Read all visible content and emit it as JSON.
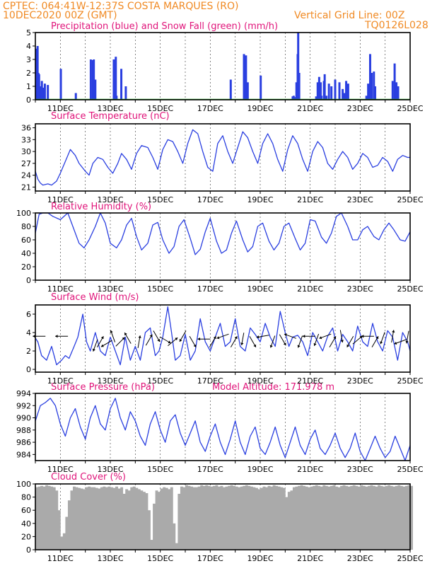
{
  "header": {
    "line1": "CPTEC:   064:41W-12:37S   COSTA MARQUES (RO)",
    "line2": "10DEC2020 00Z (GMT)",
    "grid_note": "Vertical Grid Line: 00Z",
    "code": "TQ0126L028"
  },
  "colors": {
    "header": "#f08a24",
    "title": "#e0147a",
    "series": "#2a3fe0",
    "snow": "#22aa22",
    "cloud": "#aaaaaa"
  },
  "x_tick_labels": [
    "11DEC",
    "13DEC",
    "15DEC",
    "17DEC",
    "19DEC",
    "21DEC",
    "23DEC",
    "25DEC"
  ],
  "chart_data": [
    {
      "id": "precip",
      "type": "bar",
      "title": "Precipitation (blue) and Snow Fall (green) (mm/h)",
      "ylim": [
        0,
        5
      ],
      "yticks": [
        0,
        1,
        2,
        3,
        4,
        5
      ],
      "x_unit": "day offset from 10DEC 00Z",
      "xlim": [
        0,
        15
      ],
      "series": [
        {
          "name": "Precipitation",
          "color": "#2a3fe0",
          "x": [
            0.05,
            0.09,
            0.12,
            0.15,
            0.2,
            0.26,
            0.3,
            0.33,
            0.38,
            0.5,
            1.02,
            1.62,
            2.22,
            2.3,
            2.34,
            2.4,
            3.14,
            3.22,
            3.25,
            3.44,
            3.62,
            7.82,
            8.35,
            8.43,
            8.5,
            9.02,
            10.3,
            10.34,
            10.4,
            10.45,
            10.5,
            10.52,
            10.56,
            11.24,
            11.3,
            11.36,
            11.42,
            11.45,
            11.55,
            11.58,
            11.65,
            11.75,
            11.85,
            12.0,
            12.17,
            12.3,
            12.37,
            12.44,
            12.52,
            13.25,
            13.32,
            13.4,
            13.46,
            13.55,
            13.6,
            14.3,
            14.38,
            14.45,
            14.52
          ],
          "values": [
            3.8,
            4.0,
            2.0,
            1.9,
            1.0,
            1.4,
            0.9,
            0.6,
            1.2,
            1.1,
            2.3,
            0.5,
            3.0,
            2.95,
            3.0,
            1.5,
            3.0,
            3.2,
            0.3,
            2.3,
            1.0,
            1.5,
            3.4,
            3.3,
            1.3,
            1.8,
            0.25,
            0.3,
            0.2,
            1.3,
            3.4,
            5.0,
            2.0,
            0.25,
            1.3,
            1.7,
            1.3,
            0.3,
            1.4,
            1.9,
            0.3,
            1.2,
            1.0,
            1.5,
            1.3,
            0.8,
            0.5,
            1.4,
            1.2,
            0.3,
            1.2,
            3.4,
            2.0,
            2.1,
            1.0,
            1.4,
            2.7,
            1.3,
            1.0
          ]
        },
        {
          "name": "Snow Fall",
          "color": "#22aa22",
          "x": [
            0,
            15
          ],
          "values": [
            0,
            0
          ]
        }
      ]
    },
    {
      "id": "temp",
      "type": "line",
      "title": "Surface Temperature (nC)",
      "ylim": [
        20,
        37
      ],
      "yticks": [
        21,
        24,
        27,
        30,
        33,
        36
      ],
      "x": [
        0,
        0.1,
        0.2,
        0.3,
        0.5,
        0.65,
        0.85,
        1.0,
        1.2,
        1.4,
        1.6,
        1.75,
        2.0,
        2.15,
        2.3,
        2.5,
        2.7,
        2.9,
        3.1,
        3.3,
        3.45,
        3.65,
        3.85,
        4.05,
        4.25,
        4.5,
        4.7,
        4.9,
        5.1,
        5.3,
        5.5,
        5.7,
        5.9,
        6.1,
        6.3,
        6.5,
        6.7,
        6.9,
        7.1,
        7.3,
        7.5,
        7.7,
        7.9,
        8.1,
        8.3,
        8.5,
        8.7,
        8.9,
        9.1,
        9.3,
        9.5,
        9.7,
        9.9,
        10.1,
        10.3,
        10.5,
        10.7,
        10.9,
        11.1,
        11.3,
        11.5,
        11.7,
        11.9,
        12.1,
        12.3,
        12.5,
        12.7,
        12.9,
        13.1,
        13.3,
        13.5,
        13.7,
        13.9,
        14.1,
        14.3,
        14.5,
        14.7,
        14.9,
        15.0
      ],
      "values": [
        25.0,
        23.0,
        22.0,
        21.5,
        21.8,
        21.5,
        22.5,
        24.5,
        27.5,
        30.5,
        29.0,
        27.0,
        25.0,
        24.0,
        27.0,
        28.5,
        28.0,
        26.0,
        24.5,
        27.0,
        29.5,
        28.0,
        25.5,
        29.5,
        31.5,
        31.0,
        28.5,
        25.5,
        30.5,
        33.0,
        32.5,
        30.0,
        27.0,
        32.0,
        35.5,
        34.5,
        30.0,
        26.0,
        25.0,
        32.0,
        34.0,
        30.0,
        27.0,
        31.0,
        35.0,
        33.5,
        30.0,
        27.0,
        32.0,
        34.5,
        32.0,
        28.0,
        25.0,
        30.5,
        34.0,
        32.0,
        28.0,
        25.0,
        30.0,
        32.5,
        31.0,
        27.0,
        25.5,
        28.0,
        30.0,
        28.5,
        25.5,
        27.0,
        29.5,
        28.5,
        26.0,
        26.5,
        28.5,
        27.5,
        25.0,
        28.0,
        29.0,
        28.5,
        28.5
      ]
    },
    {
      "id": "rh",
      "type": "line",
      "title": "Relative Humidity (%)",
      "ylim": [
        0,
        100
      ],
      "yticks": [
        0,
        20,
        40,
        60,
        80,
        100
      ],
      "x": [
        0,
        0.15,
        0.3,
        0.5,
        0.7,
        1.0,
        1.3,
        1.5,
        1.75,
        1.95,
        2.15,
        2.4,
        2.6,
        2.8,
        3.0,
        3.25,
        3.45,
        3.65,
        3.85,
        4.05,
        4.25,
        4.5,
        4.7,
        4.9,
        5.1,
        5.35,
        5.55,
        5.75,
        5.95,
        6.2,
        6.4,
        6.6,
        6.8,
        7.0,
        7.25,
        7.45,
        7.65,
        7.85,
        8.05,
        8.3,
        8.5,
        8.7,
        8.9,
        9.1,
        9.35,
        9.55,
        9.75,
        9.95,
        10.15,
        10.4,
        10.6,
        10.8,
        11.0,
        11.2,
        11.45,
        11.65,
        11.85,
        12.05,
        12.25,
        12.5,
        12.7,
        12.9,
        13.1,
        13.3,
        13.55,
        13.75,
        13.95,
        14.15,
        14.35,
        14.6,
        14.8,
        15.0
      ],
      "values": [
        70,
        98,
        100,
        100,
        95,
        90,
        100,
        80,
        55,
        48,
        60,
        80,
        100,
        85,
        55,
        48,
        60,
        82,
        92,
        65,
        45,
        55,
        82,
        86,
        60,
        40,
        50,
        80,
        90,
        62,
        38,
        46,
        72,
        92,
        58,
        40,
        45,
        70,
        88,
        60,
        42,
        50,
        80,
        85,
        58,
        45,
        55,
        80,
        85,
        62,
        45,
        55,
        90,
        88,
        64,
        55,
        70,
        95,
        100,
        80,
        60,
        60,
        75,
        80,
        65,
        60,
        75,
        85,
        75,
        60,
        58,
        72
      ]
    },
    {
      "id": "wind",
      "type": "line",
      "title": "Surface Wind (m/s)",
      "ylim": [
        -0.3,
        7
      ],
      "yticks": [
        0,
        2,
        4,
        6
      ],
      "x": [
        0,
        0.1,
        0.25,
        0.45,
        0.65,
        0.85,
        1.05,
        1.2,
        1.35,
        1.55,
        1.7,
        1.9,
        2.05,
        2.2,
        2.4,
        2.6,
        2.8,
        3.0,
        3.2,
        3.4,
        3.6,
        3.8,
        4.0,
        4.2,
        4.4,
        4.6,
        4.8,
        4.95,
        5.1,
        5.3,
        5.45,
        5.6,
        5.8,
        6.0,
        6.2,
        6.4,
        6.6,
        6.8,
        7.0,
        7.2,
        7.4,
        7.6,
        7.8,
        8.0,
        8.2,
        8.4,
        8.6,
        8.8,
        9.0,
        9.2,
        9.4,
        9.6,
        9.8,
        10.0,
        10.15,
        10.3,
        10.5,
        10.7,
        10.9,
        11.1,
        11.3,
        11.5,
        11.7,
        11.9,
        12.1,
        12.3,
        12.5,
        12.7,
        12.9,
        13.1,
        13.3,
        13.5,
        13.7,
        13.9,
        14.1,
        14.3,
        14.5,
        14.7,
        14.9,
        15.0
      ],
      "values": [
        3.4,
        3.0,
        1.5,
        1.0,
        2.5,
        0.5,
        1.0,
        1.5,
        1.2,
        2.5,
        3.5,
        6.0,
        3.0,
        2.0,
        4.0,
        2.0,
        1.5,
        3.5,
        2.0,
        0.5,
        3.5,
        1.0,
        2.5,
        1.0,
        4.0,
        4.5,
        1.5,
        2.0,
        3.5,
        6.8,
        4.0,
        1.0,
        1.5,
        3.8,
        1.0,
        2.0,
        5.5,
        3.0,
        2.0,
        3.5,
        5.0,
        2.5,
        3.0,
        5.5,
        2.5,
        2.0,
        4.5,
        3.8,
        3.0,
        5.0,
        3.5,
        2.5,
        6.3,
        4.0,
        2.5,
        3.5,
        3.7,
        3.0,
        1.5,
        4.0,
        3.0,
        2.0,
        3.6,
        4.5,
        2.0,
        3.8,
        3.0,
        2.0,
        4.7,
        3.0,
        2.5,
        5.0,
        3.0,
        2.0,
        4.2,
        3.5,
        1.0,
        4.0,
        3.0,
        2.0
      ]
    },
    {
      "id": "pressure",
      "type": "line",
      "title": "Surface Pressure (hPa)",
      "annotation": "Model Altitude: 171.978 m",
      "ylim": [
        983,
        994
      ],
      "yticks": [
        984,
        986,
        988,
        990,
        992,
        994
      ],
      "x": [
        0,
        0.2,
        0.4,
        0.6,
        0.8,
        1.0,
        1.2,
        1.4,
        1.6,
        1.8,
        2.0,
        2.2,
        2.4,
        2.6,
        2.8,
        3.0,
        3.2,
        3.4,
        3.6,
        3.8,
        4.0,
        4.2,
        4.4,
        4.6,
        4.8,
        5.0,
        5.2,
        5.4,
        5.6,
        5.8,
        6.0,
        6.2,
        6.4,
        6.6,
        6.8,
        7.0,
        7.2,
        7.4,
        7.6,
        7.8,
        8.0,
        8.2,
        8.4,
        8.6,
        8.8,
        9.0,
        9.2,
        9.4,
        9.6,
        9.8,
        10.0,
        10.2,
        10.4,
        10.6,
        10.8,
        11.0,
        11.2,
        11.4,
        11.6,
        11.8,
        12.0,
        12.2,
        12.4,
        12.6,
        12.8,
        13.0,
        13.2,
        13.4,
        13.6,
        13.8,
        14.0,
        14.2,
        14.4,
        14.6,
        14.8,
        15.0
      ],
      "values": [
        989.5,
        992.0,
        992.5,
        993.2,
        992.0,
        989.0,
        987.0,
        990.0,
        991.5,
        988.5,
        986.5,
        990.0,
        992.0,
        989.0,
        988.0,
        991.5,
        993.2,
        990.0,
        988.0,
        991.0,
        989.5,
        987.0,
        985.5,
        989.0,
        991.0,
        988.0,
        986.0,
        989.5,
        990.5,
        987.5,
        985.5,
        987.5,
        989.5,
        986.0,
        984.5,
        987.0,
        989.0,
        986.0,
        984.0,
        986.5,
        989.5,
        986.0,
        984.0,
        987.0,
        988.5,
        985.0,
        984.0,
        986.0,
        988.5,
        985.5,
        983.5,
        986.0,
        988.5,
        985.5,
        984.0,
        986.5,
        988.0,
        985.0,
        984.0,
        985.5,
        987.5,
        985.0,
        983.5,
        985.0,
        987.5,
        984.5,
        983.0,
        985.0,
        987.0,
        985.0,
        983.5,
        984.5,
        987.0,
        985.0,
        983.0,
        985.5
      ]
    },
    {
      "id": "cloud",
      "type": "bar",
      "title": "Cloud Cover (%)",
      "ylim": [
        0,
        100
      ],
      "yticks": [
        0,
        20,
        40,
        60,
        80,
        100
      ],
      "x_step": 0.1,
      "values": [
        95,
        96,
        97,
        96,
        98,
        97,
        96,
        95,
        90,
        60,
        20,
        25,
        50,
        75,
        90,
        96,
        95,
        94,
        93,
        92,
        95,
        96,
        95,
        95,
        94,
        93,
        95,
        96,
        95,
        96,
        95,
        94,
        96,
        93,
        95,
        85,
        92,
        90,
        95,
        96,
        94,
        92,
        90,
        88,
        86,
        60,
        15,
        70,
        90,
        88,
        93,
        95,
        94,
        92,
        95,
        40,
        10,
        85,
        96,
        95,
        98,
        97,
        96,
        95,
        95,
        96,
        98,
        97,
        98,
        97,
        96,
        97,
        98,
        96,
        97,
        95,
        96,
        97,
        98,
        97,
        96,
        95,
        96,
        97,
        98,
        97,
        96,
        95,
        94,
        92,
        94,
        96,
        95,
        97,
        96,
        98,
        97,
        96,
        95,
        94,
        80,
        88,
        90,
        95,
        96,
        97,
        98,
        97,
        96,
        95,
        96,
        97,
        98,
        97,
        96,
        98,
        97,
        96,
        97,
        98,
        96,
        95,
        97,
        98,
        97,
        96,
        97,
        98,
        97,
        96,
        98,
        97,
        96,
        97,
        98,
        97,
        96,
        98,
        97,
        96,
        97,
        98,
        97,
        96,
        97,
        98,
        97,
        96,
        97,
        98,
        97
      ]
    }
  ],
  "wind_arrows": {
    "x": [
      0.15,
      1.05,
      2.4,
      2.6,
      2.85,
      3.1,
      3.4,
      3.7,
      4.15,
      4.55,
      4.85,
      5.2,
      5.5,
      5.9,
      6.3,
      6.75,
      7.1,
      7.5,
      7.95,
      8.3,
      8.7,
      9.1,
      9.5,
      9.9,
      10.2,
      10.6,
      10.95,
      11.25,
      11.6,
      11.9,
      12.25,
      12.6,
      12.9,
      13.3,
      13.6,
      13.9,
      14.3,
      14.6,
      14.9
    ],
    "y": [
      3.6,
      3.6,
      2.6,
      3.0,
      2.8,
      3.6,
      3.0,
      3.4,
      3.0,
      3.2,
      3.6,
      3.2,
      3.0,
      3.6,
      3.0,
      3.3,
      3.0,
      3.6,
      3.0,
      3.3,
      3.0,
      3.6,
      3.0,
      3.2,
      3.6,
      3.0,
      3.6,
      3.2,
      3.6,
      3.0,
      3.6,
      3.0,
      3.2,
      3.6,
      3.0,
      3.4,
      3.6,
      3.0,
      3.5
    ],
    "dir": [
      180,
      180,
      250,
      60,
      210,
      110,
      45,
      120,
      80,
      60,
      300,
      330,
      40,
      240,
      300,
      180,
      60,
      200,
      60,
      260,
      300,
      190,
      250,
      300,
      160,
      250,
      180,
      250,
      200,
      60,
      280,
      240,
      40,
      180,
      60,
      250,
      80,
      200,
      260
    ]
  }
}
